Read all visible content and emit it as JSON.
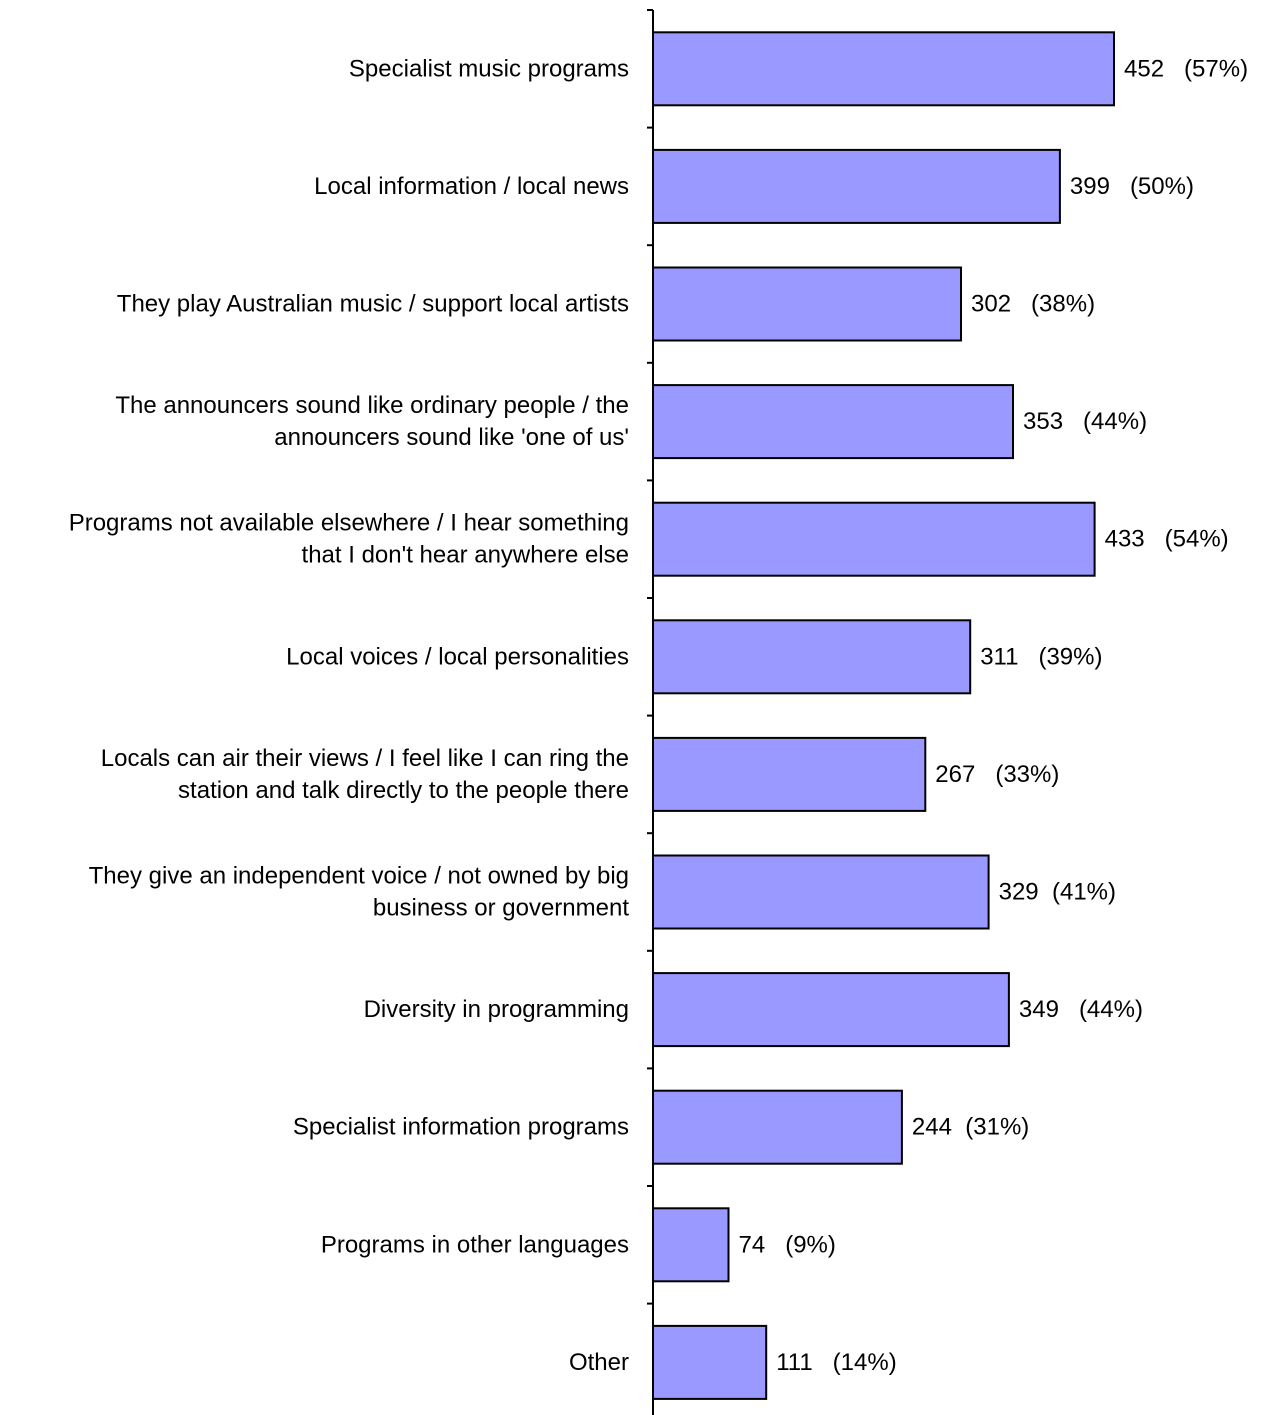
{
  "chart_data": {
    "type": "bar",
    "orientation": "horizontal",
    "categories": [
      [
        "Specialist music programs"
      ],
      [
        "Local information / local news"
      ],
      [
        "They play Australian music / support local artists"
      ],
      [
        "The announcers sound like ordinary people / the",
        "announcers sound like 'one of us'"
      ],
      [
        "Programs not available elsewhere / I hear something",
        "that I don't hear anywhere else"
      ],
      [
        "Local voices / local personalities"
      ],
      [
        "Locals can air their views / I feel like I can ring the",
        "station and talk directly to the people there"
      ],
      [
        "They give an independent voice / not owned by big",
        "business or government"
      ],
      [
        "Diversity in programming"
      ],
      [
        "Specialist information programs"
      ],
      [
        "Programs in other languages"
      ],
      [
        "Other"
      ]
    ],
    "values": [
      452,
      399,
      302,
      353,
      433,
      311,
      267,
      329,
      349,
      244,
      74,
      111
    ],
    "data_labels": [
      "452   (57%)",
      "399   (50%)",
      "302   (38%)",
      "353   (44%)",
      "433   (54%)",
      "311   (39%)",
      "267   (33%)",
      "329  (41%)",
      "349   (44%)",
      "244  (31%)",
      "74   (9%)",
      "111   (14%)"
    ],
    "xlim": [
      0,
      790
    ],
    "grid": false,
    "bar_color": "#9999FF",
    "bar_edge_color": "#000000"
  }
}
